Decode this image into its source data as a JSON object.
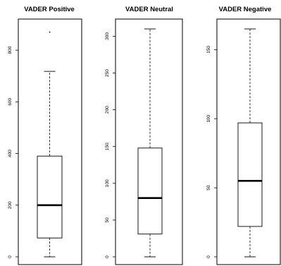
{
  "chart_data": [
    {
      "type": "boxplot",
      "title": "VADER Positive",
      "ylim": [
        0,
        900
      ],
      "yticks": [
        0,
        200,
        400,
        600,
        800
      ],
      "box": {
        "min": 0,
        "q1": 73,
        "median": 200,
        "q3": 390,
        "max": 718
      },
      "outliers": [
        870
      ]
    },
    {
      "type": "boxplot",
      "title": "VADER Neutral",
      "ylim": [
        0,
        320
      ],
      "yticks": [
        0,
        50,
        100,
        150,
        200,
        250,
        300
      ],
      "box": {
        "min": 0,
        "q1": 31,
        "median": 80,
        "q3": 148,
        "max": 310
      },
      "outliers": []
    },
    {
      "type": "boxplot",
      "title": "VADER Negative",
      "ylim": [
        0,
        170
      ],
      "yticks": [
        0,
        50,
        100,
        150
      ],
      "box": {
        "min": 0,
        "q1": 22,
        "median": 55,
        "q3": 97,
        "max": 165
      },
      "outliers": []
    }
  ]
}
